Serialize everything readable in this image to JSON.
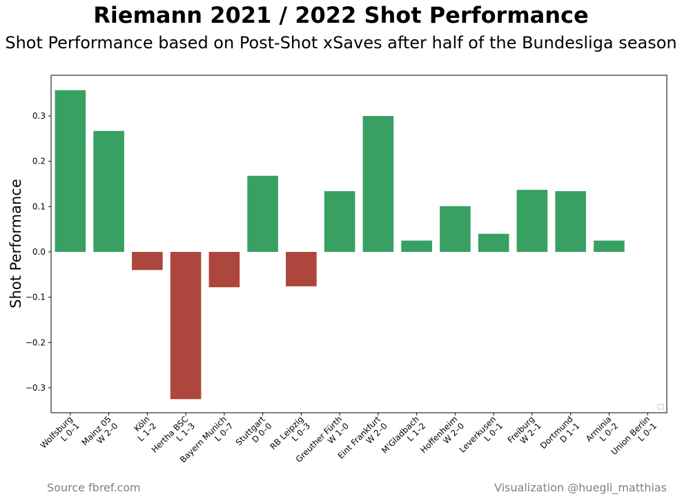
{
  "chart_data": {
    "type": "bar",
    "title": "Riemann 2021 / 2022 Shot Performance",
    "subtitle": "Shot Performance based on Post-Shot xSaves after half of the Bundesliga season",
    "xlabel": "",
    "ylabel": "Shot Performance",
    "ylim": [
      -0.355,
      0.39
    ],
    "yticks": [
      -0.3,
      -0.2,
      -0.1,
      0.0,
      0.1,
      0.2,
      0.3
    ],
    "ytick_labels": [
      "−0.3",
      "−0.2",
      "−0.1",
      "0.0",
      "0.1",
      "0.2",
      "0.3"
    ],
    "categories": [
      [
        "Wolfsburg",
        "L 0–1"
      ],
      [
        "Mainz 05",
        "W 2–0"
      ],
      [
        "Köln",
        "L 1–2"
      ],
      [
        "Hertha BSC",
        "L 1–3"
      ],
      [
        "Bayern Munich",
        "L 0–7"
      ],
      [
        "Stuttgart",
        "D 0–0"
      ],
      [
        "RB Leipzig",
        "L 0–3"
      ],
      [
        "Greuther Fürth",
        "W 1–0"
      ],
      [
        "Eint Frankfurt",
        "W 2–0"
      ],
      [
        "M'Gladbach",
        "L 1–2"
      ],
      [
        "Hoffenheim",
        "W 2–0"
      ],
      [
        "Leverkusen",
        "L 0–1"
      ],
      [
        "Freiburg",
        "W 2–1"
      ],
      [
        "Dortmund",
        "D 1–1"
      ],
      [
        "Arminia",
        "L 0–2"
      ],
      [
        "Union Berlin",
        "L 0–1"
      ]
    ],
    "values": [
      0.357,
      0.267,
      -0.04,
      -0.325,
      -0.078,
      0.168,
      -0.076,
      0.134,
      0.3,
      0.025,
      0.101,
      0.04,
      0.137,
      0.134,
      0.025,
      0.0
    ],
    "colors": {
      "positive": "#38a063",
      "negative": "#ad463d",
      "axis": "#000000",
      "footer": "#808080"
    },
    "grid": false,
    "legend": "lower-right, empty"
  },
  "footer": {
    "source": "Source fbref.com",
    "credit": "Visualization @huegli_matthias"
  }
}
